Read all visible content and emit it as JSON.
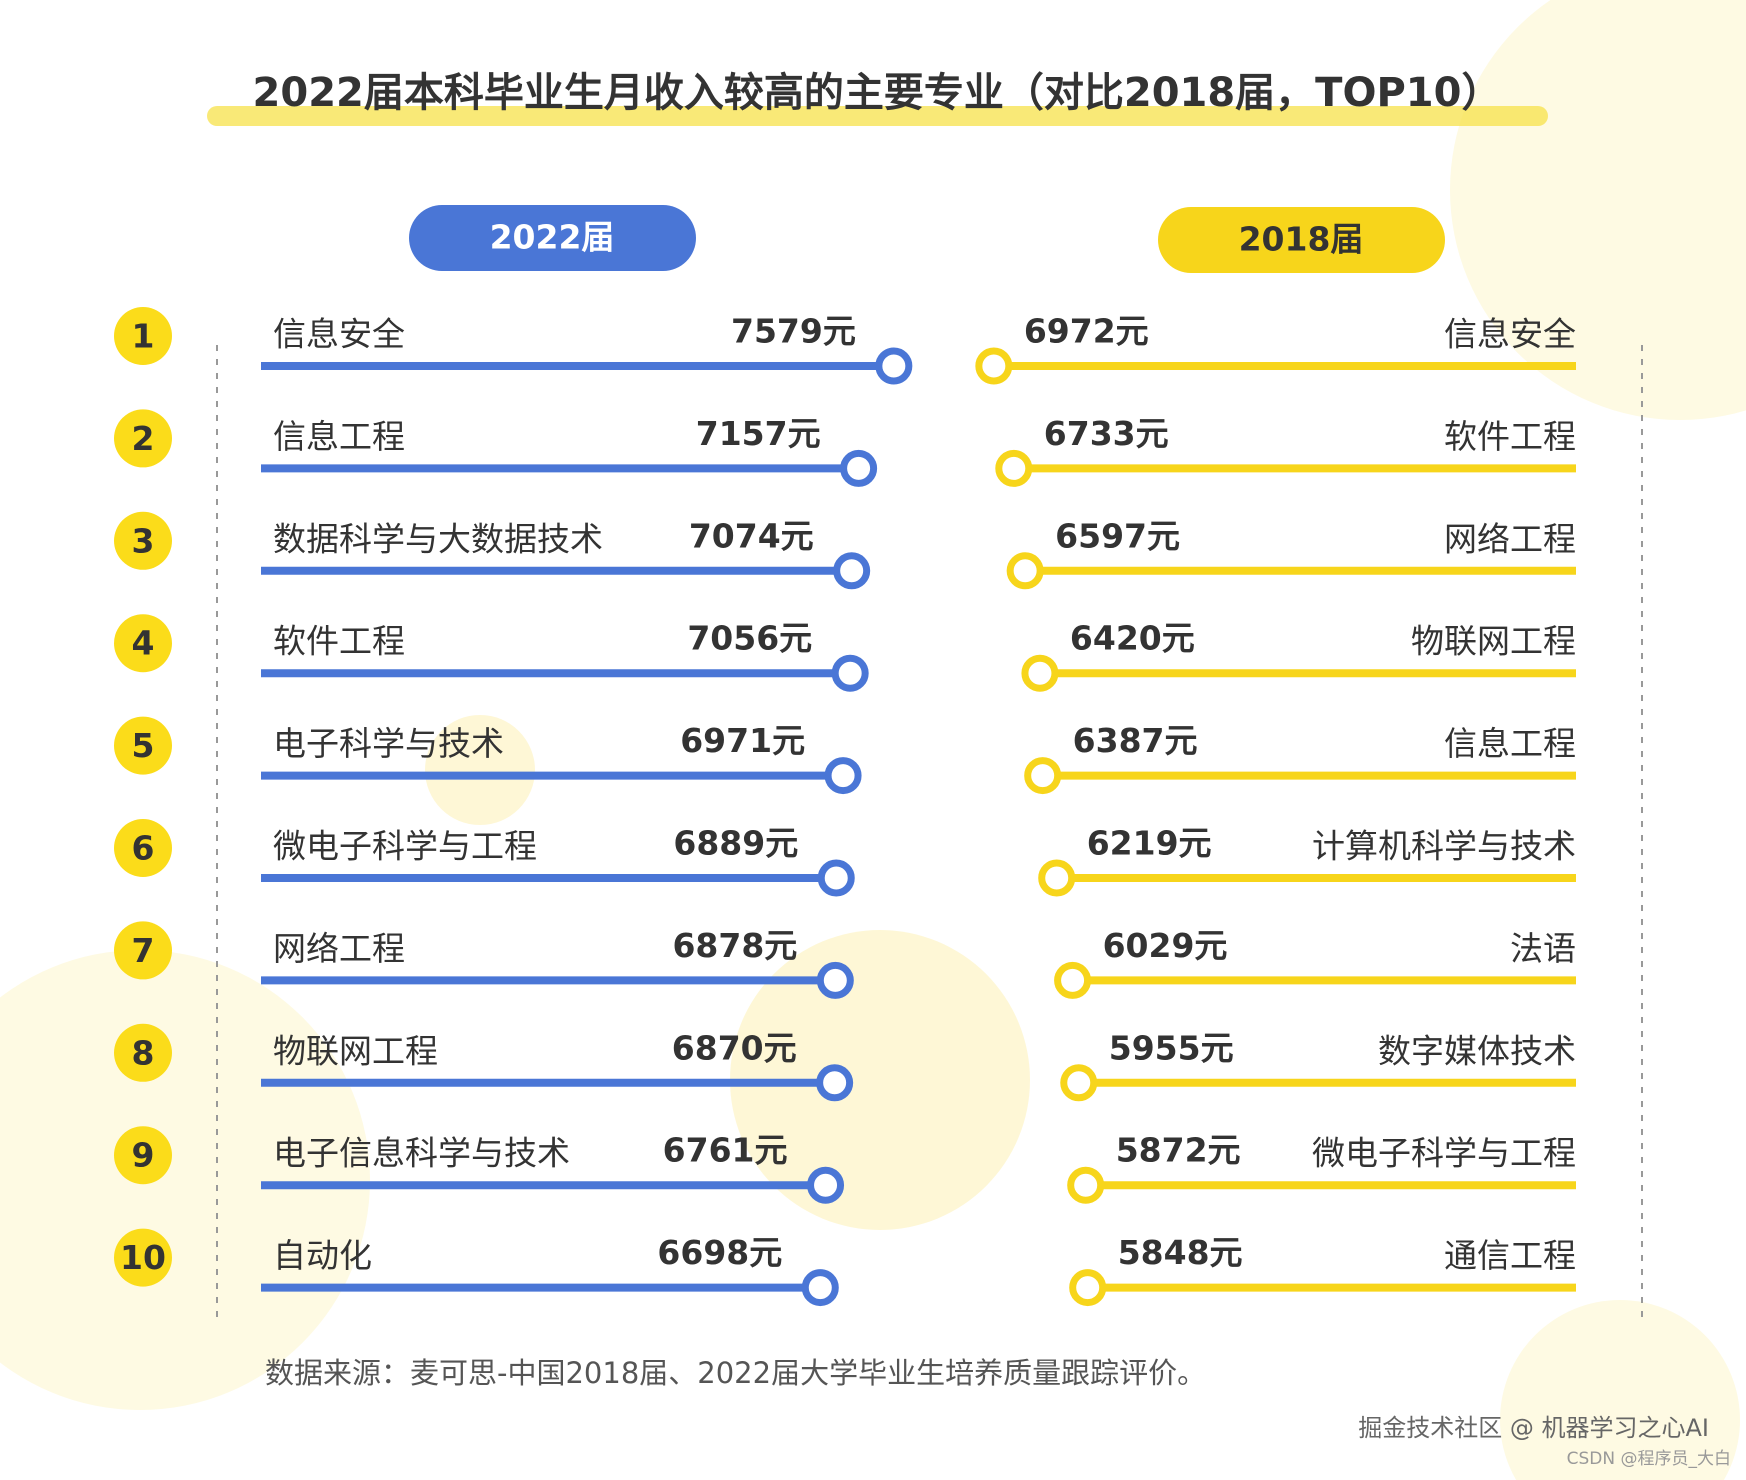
{
  "title": "2022届本科毕业生月收入较高的主要专业（对比2018届，TOP10）",
  "source": "数据来源：麦可思-中国2018届、2022届大学毕业生培养质量跟踪评价。",
  "watermarks": [
    "掘金技术社区 @ 机器学习之心AI",
    "CSDN @程序员_大白"
  ],
  "ranks": [
    1,
    2,
    3,
    4,
    5,
    6,
    7,
    8,
    9,
    10
  ],
  "chart_data": [
    {
      "type": "bar",
      "title": "2022届",
      "color": "#4a76d6",
      "direction": "ltr",
      "categories": [
        "信息安全",
        "信息工程",
        "数据科学与大数据技术",
        "软件工程",
        "电子科学与技术",
        "微电子科学与工程",
        "网络工程",
        "物联网工程",
        "电子信息科学与技术",
        "自动化"
      ],
      "values": [
        7579,
        7157,
        7074,
        7056,
        6971,
        6889,
        6878,
        6870,
        6761,
        6698
      ],
      "value_labels": [
        "7579元",
        "7157元",
        "7074元",
        "7056元",
        "6971元",
        "6889元",
        "6878元",
        "6870元",
        "6761元",
        "6698元"
      ]
    },
    {
      "type": "bar",
      "title": "2018届",
      "color": "#f7d51b",
      "direction": "rtl",
      "categories": [
        "信息安全",
        "软件工程",
        "网络工程",
        "物联网工程",
        "信息工程",
        "计算机科学与技术",
        "法语",
        "数字媒体技术",
        "微电子科学与工程",
        "通信工程"
      ],
      "values": [
        6972,
        6733,
        6597,
        6420,
        6387,
        6219,
        6029,
        5955,
        5872,
        5848
      ],
      "value_labels": [
        "6972元",
        "6733元",
        "6597元",
        "6420元",
        "6387元",
        "6219元",
        "6029元",
        "5955元",
        "5872元",
        "5848元"
      ]
    }
  ]
}
